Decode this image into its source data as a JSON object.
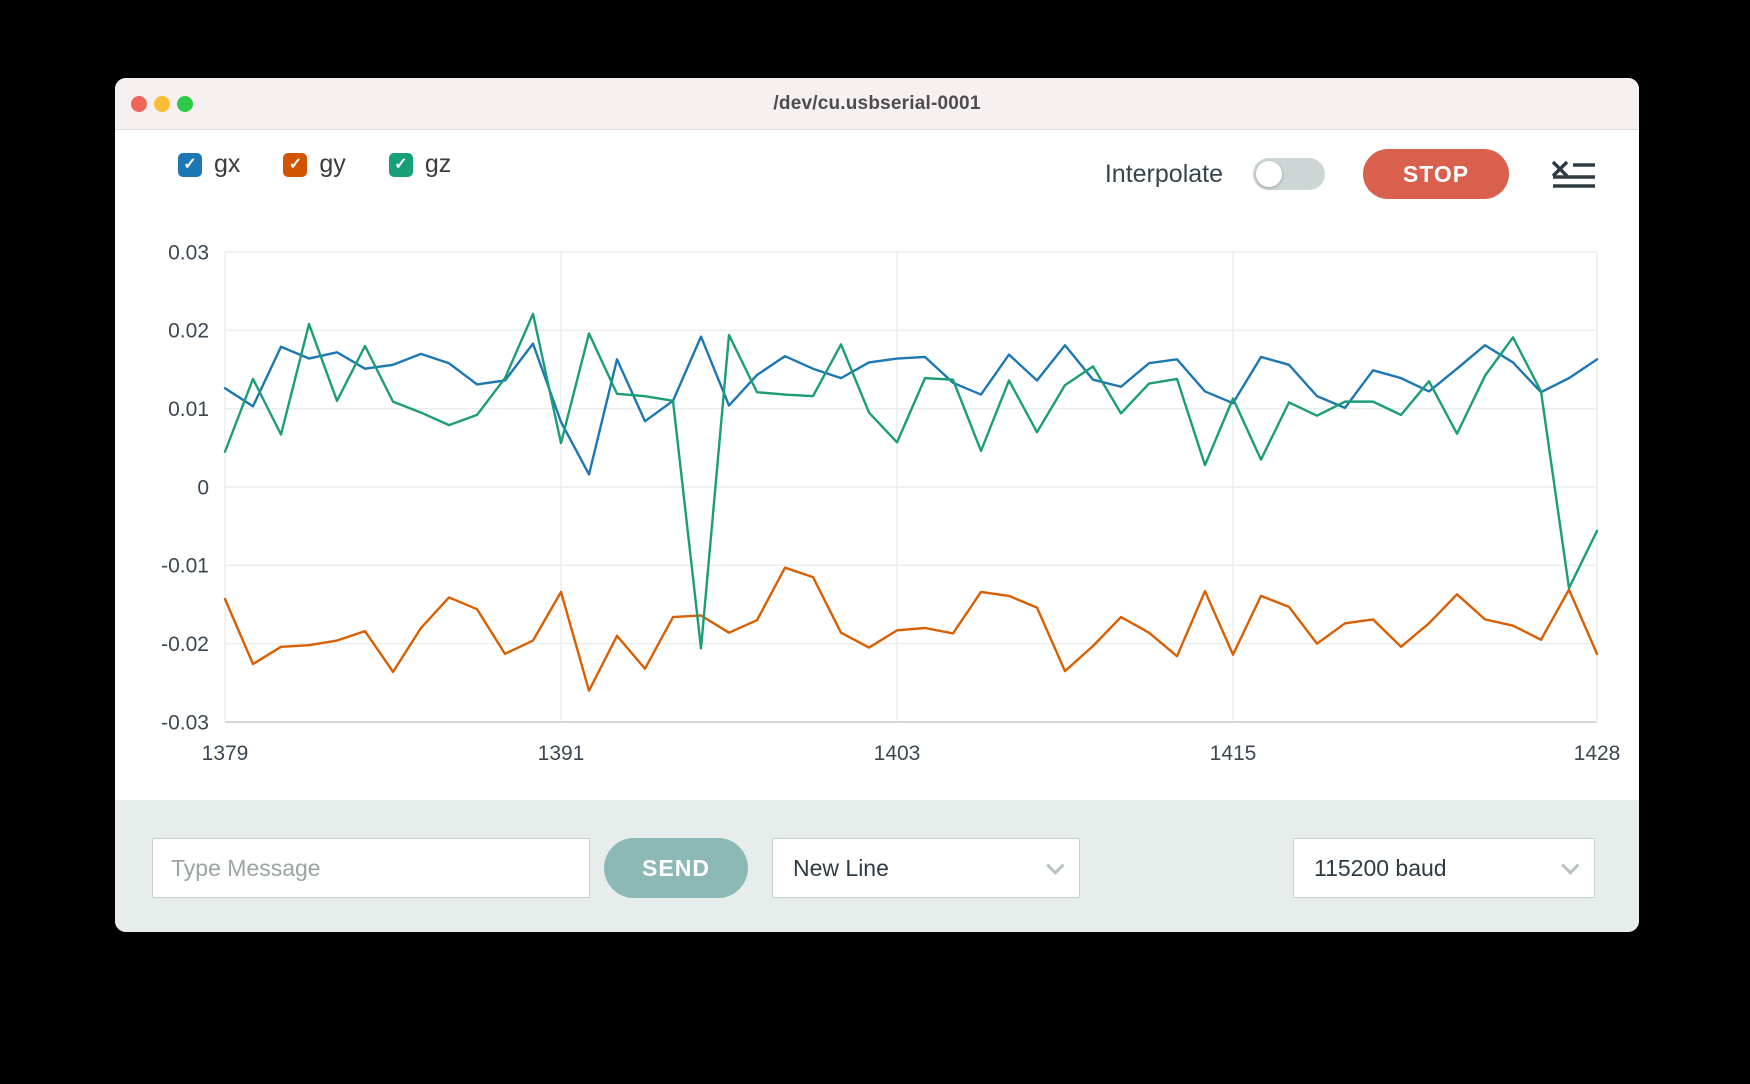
{
  "window": {
    "title": "/dev/cu.usbserial-0001"
  },
  "traffic_lights": {
    "close_color": "#f2655c",
    "minimize_color": "#f9bd35",
    "zoom_color": "#2fc944"
  },
  "legend": {
    "items": [
      {
        "label": "gx",
        "color": "#1c77b5",
        "checked": true
      },
      {
        "label": "gy",
        "color": "#d35400",
        "checked": true
      },
      {
        "label": "gz",
        "color": "#17a077",
        "checked": true
      }
    ]
  },
  "controls": {
    "interpolate_label": "Interpolate",
    "interpolate_on": false,
    "stop_label": "STOP",
    "stop_color": "#d8604c",
    "menu_icon": "clear-console-icon"
  },
  "chart_data": {
    "type": "line",
    "x_range": [
      1379,
      1428
    ],
    "ylim": [
      -0.03,
      0.03
    ],
    "grid": true,
    "legend_position": "top-left",
    "xticks": [
      1379,
      1391,
      1403,
      1415,
      1428
    ],
    "ytick_labels": [
      "0.03",
      "0.02",
      "0.01",
      "0",
      "-0.01",
      "-0.02",
      "-0.03"
    ],
    "series": [
      {
        "name": "gx",
        "color": "#1c77b5",
        "values": [
          0.0126,
          0.0103,
          0.0179,
          0.0164,
          0.0172,
          0.0151,
          0.0156,
          0.017,
          0.0158,
          0.0131,
          0.0136,
          0.0183,
          0.0083,
          0.0016,
          0.0163,
          0.0084,
          0.011,
          0.0192,
          0.0104,
          0.0143,
          0.0167,
          0.0151,
          0.0139,
          0.0159,
          0.0164,
          0.0166,
          0.0133,
          0.0118,
          0.0169,
          0.0136,
          0.0181,
          0.0137,
          0.0128,
          0.0158,
          0.0163,
          0.0122,
          0.0107,
          0.0166,
          0.0156,
          0.0116,
          0.0101,
          0.0149,
          0.0139,
          0.0122,
          0.0151,
          0.0181,
          0.0159,
          0.0121,
          0.0139,
          0.0163
        ]
      },
      {
        "name": "gy",
        "color": "#d95f02",
        "values": [
          -0.0143,
          -0.0226,
          -0.0204,
          -0.0202,
          -0.0196,
          -0.0184,
          -0.0236,
          -0.018,
          -0.0141,
          -0.0156,
          -0.0213,
          -0.0196,
          -0.0134,
          -0.026,
          -0.019,
          -0.0232,
          -0.0166,
          -0.0164,
          -0.0186,
          -0.017,
          -0.0103,
          -0.0115,
          -0.0186,
          -0.0205,
          -0.0183,
          -0.018,
          -0.0187,
          -0.0134,
          -0.0139,
          -0.0154,
          -0.0235,
          -0.0203,
          -0.0166,
          -0.0186,
          -0.0216,
          -0.0133,
          -0.0214,
          -0.0139,
          -0.0153,
          -0.02,
          -0.0174,
          -0.0169,
          -0.0204,
          -0.0174,
          -0.0137,
          -0.0169,
          -0.0177,
          -0.0195,
          -0.0131,
          -0.0213
        ]
      },
      {
        "name": "gz",
        "color": "#1b9e77",
        "values": [
          0.0045,
          0.0138,
          0.0067,
          0.0208,
          0.011,
          0.018,
          0.0109,
          0.0095,
          0.0079,
          0.0092,
          0.0139,
          0.0221,
          0.0056,
          0.0196,
          0.0119,
          0.0116,
          0.011,
          -0.0206,
          0.0194,
          0.0121,
          0.0118,
          0.0116,
          0.0182,
          0.0095,
          0.0057,
          0.0139,
          0.0137,
          0.0046,
          0.0136,
          0.007,
          0.013,
          0.0154,
          0.0094,
          0.0132,
          0.0138,
          0.0028,
          0.0113,
          0.0035,
          0.0108,
          0.0091,
          0.0109,
          0.0109,
          0.0092,
          0.0135,
          0.0068,
          0.0142,
          0.0191,
          0.0122,
          -0.0129,
          -0.0056
        ]
      }
    ]
  },
  "message_bar": {
    "placeholder": "Type Message",
    "send_label": "SEND",
    "line_ending_selected": "New Line",
    "baud_selected": "115200 baud"
  }
}
